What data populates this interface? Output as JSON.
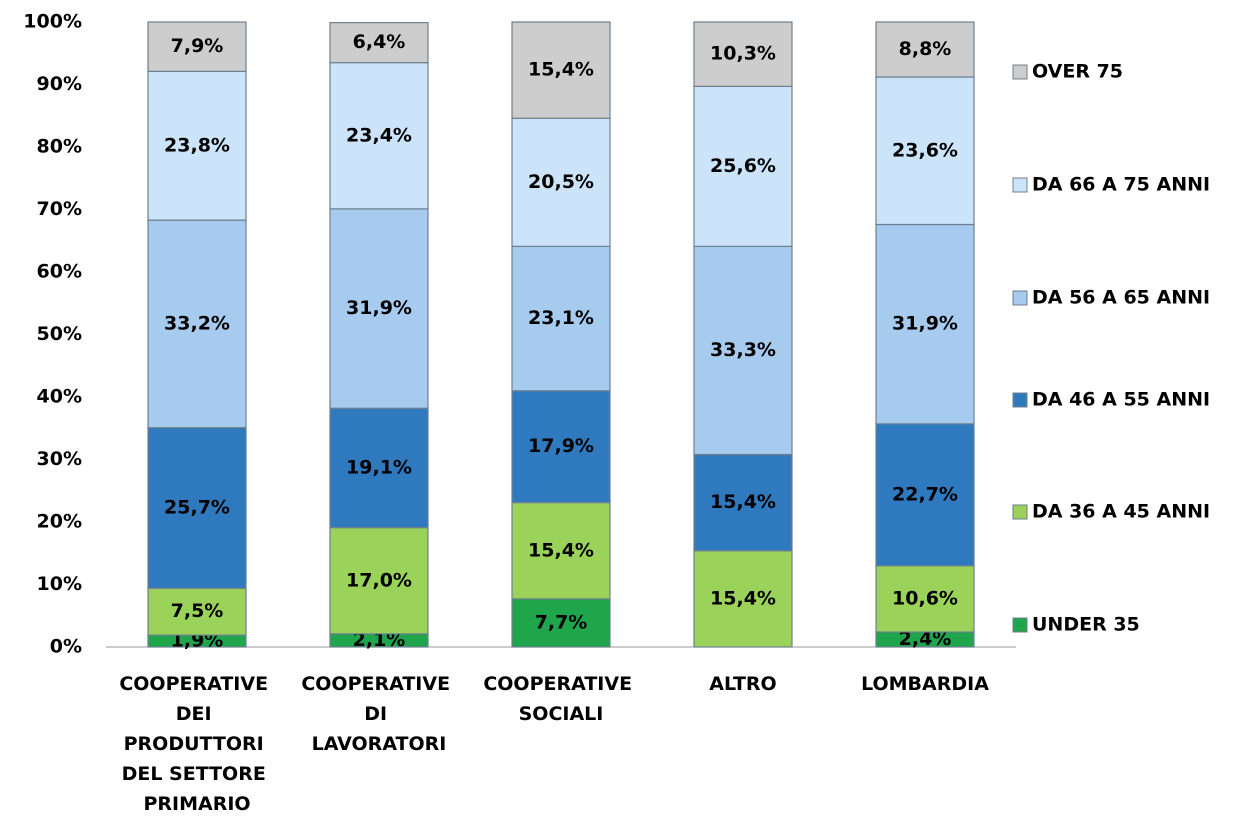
{
  "chart_data": {
    "type": "stacked_bar",
    "categories": [
      "COOPERATIVE DEI PRODUTTORI DEL SETTORE PRIMARIO",
      "COOPERATIVE DI LAVORATORI",
      "COOPERATIVE SOCIALI",
      "ALTRO",
      "LOMBARDIA"
    ],
    "series": [
      {
        "name": "UNDER 35",
        "color": "#1fa64c",
        "values": [
          1.9,
          2.1,
          7.7,
          null,
          2.4
        ],
        "value_labels": [
          "1,9%",
          "2,1%",
          "7,7%",
          null,
          "2,4%"
        ]
      },
      {
        "name": "DA 36 A 45 ANNI",
        "color": "#9bd35a",
        "values": [
          7.5,
          17.0,
          15.4,
          15.4,
          10.6
        ],
        "value_labels": [
          "7,5%",
          "17,0%",
          "15,4%",
          "15,4%",
          "10,6%"
        ]
      },
      {
        "name": "DA 46 A 55 ANNI",
        "color": "#2f79bf",
        "values": [
          25.7,
          19.1,
          17.9,
          15.4,
          22.7
        ],
        "value_labels": [
          "25,7%",
          "19,1%",
          "17,9%",
          "15,4%",
          "22,7%"
        ]
      },
      {
        "name": "DA 56 A 65 ANNI",
        "color": "#a7cbee",
        "values": [
          33.2,
          31.9,
          23.1,
          33.3,
          31.9
        ],
        "value_labels": [
          "33,2%",
          "31,9%",
          "23,1%",
          "33,3%",
          "31,9%"
        ]
      },
      {
        "name": "DA 66 A 75 ANNI",
        "color": "#cbe4f9",
        "values": [
          23.8,
          23.4,
          20.5,
          25.6,
          23.6
        ],
        "value_labels": [
          "23,8%",
          "23,4%",
          "20,5%",
          "25,6%",
          "23,6%"
        ]
      },
      {
        "name": "OVER 75",
        "color": "#cdcdcd",
        "values": [
          7.9,
          6.4,
          15.4,
          10.3,
          8.8
        ],
        "value_labels": [
          "7,9%",
          "6,4%",
          "15,4%",
          "10,3%",
          "8,8%"
        ]
      }
    ],
    "ylim": [
      0,
      100
    ],
    "yticks": [
      {
        "value": 0,
        "label": "0%"
      },
      {
        "value": 10,
        "label": "10%"
      },
      {
        "value": 20,
        "label": "20%"
      },
      {
        "value": 30,
        "label": "30%"
      },
      {
        "value": 40,
        "label": "40%"
      },
      {
        "value": 50,
        "label": "50%"
      },
      {
        "value": 60,
        "label": "60%"
      },
      {
        "value": 70,
        "label": "70%"
      },
      {
        "value": 80,
        "label": "80%"
      },
      {
        "value": 90,
        "label": "90%"
      },
      {
        "value": 100,
        "label": "100%"
      }
    ],
    "grid": false,
    "legend": "right"
  }
}
